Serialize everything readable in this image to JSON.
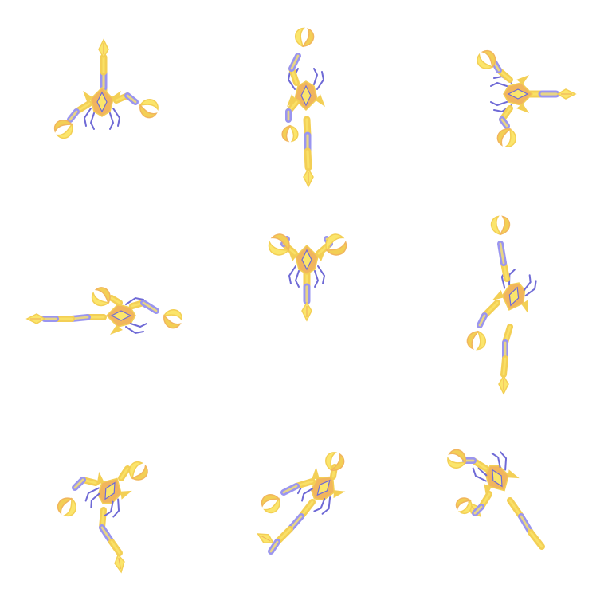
{
  "sprite_sheet": {
    "grid": {
      "rows": 3,
      "cols": 3
    },
    "colors": {
      "background": "#ffffff",
      "gold_light": "#fbe56b",
      "gold_mid": "#f3cf55",
      "orange": "#f1b55d",
      "purple": "#9a95f0",
      "outline": "#6f6ad6"
    },
    "frames": [
      {
        "id": "frame-1",
        "pose": "idle-front"
      },
      {
        "id": "frame-2",
        "pose": "walk-vertical"
      },
      {
        "id": "frame-3",
        "pose": "idle-side-right"
      },
      {
        "id": "frame-4",
        "pose": "walk-horizontal-left"
      },
      {
        "id": "frame-5",
        "pose": "claws-raised"
      },
      {
        "id": "frame-6",
        "pose": "tail-up"
      },
      {
        "id": "frame-7",
        "pose": "curl-left"
      },
      {
        "id": "frame-8",
        "pose": "stretch-diagonal"
      },
      {
        "id": "frame-9",
        "pose": "coil-right"
      }
    ]
  }
}
